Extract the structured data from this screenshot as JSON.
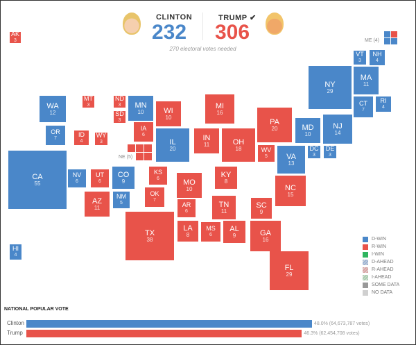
{
  "colors": {
    "dem": "#4a87c9",
    "rep": "#e8534a",
    "ind": "#2fb560",
    "some": "#999999",
    "none": "#d0d0d0"
  },
  "header": {
    "clinton": {
      "name": "CLINTON",
      "votes": "232",
      "avatar": "clinton-avatar-icon"
    },
    "trump": {
      "name": "TRUMP",
      "check": "✔",
      "votes": "306",
      "avatar": "trump-avatar-icon"
    },
    "needed": "270 electoral votes needed"
  },
  "states": [
    {
      "abbr": "AK",
      "ev": "3",
      "party": "rep"
    },
    {
      "abbr": "HI",
      "ev": "4",
      "party": "dem"
    },
    {
      "abbr": "WA",
      "ev": "12",
      "party": "dem"
    },
    {
      "abbr": "MT",
      "ev": "3",
      "party": "rep"
    },
    {
      "abbr": "ND",
      "ev": "3",
      "party": "rep"
    },
    {
      "abbr": "SD",
      "ev": "3",
      "party": "rep"
    },
    {
      "abbr": "MN",
      "ev": "10",
      "party": "dem"
    },
    {
      "abbr": "WI",
      "ev": "10",
      "party": "rep"
    },
    {
      "abbr": "MI",
      "ev": "16",
      "party": "rep"
    },
    {
      "abbr": "NY",
      "ev": "29",
      "party": "dem"
    },
    {
      "abbr": "VT",
      "ev": "3",
      "party": "dem"
    },
    {
      "abbr": "NH",
      "ev": "4",
      "party": "dem"
    },
    {
      "abbr": "MA",
      "ev": "11",
      "party": "dem"
    },
    {
      "abbr": "CT",
      "ev": "7",
      "party": "dem"
    },
    {
      "abbr": "RI",
      "ev": "4",
      "party": "dem"
    },
    {
      "abbr": "OR",
      "ev": "7",
      "party": "dem"
    },
    {
      "abbr": "ID",
      "ev": "4",
      "party": "rep"
    },
    {
      "abbr": "WY",
      "ev": "3",
      "party": "rep"
    },
    {
      "abbr": "IA",
      "ev": "6",
      "party": "rep"
    },
    {
      "abbr": "IL",
      "ev": "20",
      "party": "dem"
    },
    {
      "abbr": "IN",
      "ev": "11",
      "party": "rep"
    },
    {
      "abbr": "OH",
      "ev": "18",
      "party": "rep"
    },
    {
      "abbr": "PA",
      "ev": "20",
      "party": "rep"
    },
    {
      "abbr": "MD",
      "ev": "10",
      "party": "dem"
    },
    {
      "abbr": "NJ",
      "ev": "14",
      "party": "dem"
    },
    {
      "abbr": "CA",
      "ev": "55",
      "party": "dem"
    },
    {
      "abbr": "NV",
      "ev": "6",
      "party": "dem"
    },
    {
      "abbr": "UT",
      "ev": "6",
      "party": "rep"
    },
    {
      "abbr": "CO",
      "ev": "9",
      "party": "dem"
    },
    {
      "abbr": "KS",
      "ev": "6",
      "party": "rep"
    },
    {
      "abbr": "MO",
      "ev": "10",
      "party": "rep"
    },
    {
      "abbr": "KY",
      "ev": "8",
      "party": "rep"
    },
    {
      "abbr": "WV",
      "ev": "5",
      "party": "rep"
    },
    {
      "abbr": "VA",
      "ev": "13",
      "party": "dem"
    },
    {
      "abbr": "DC",
      "ev": "3",
      "party": "dem"
    },
    {
      "abbr": "DE",
      "ev": "3",
      "party": "dem"
    },
    {
      "abbr": "NC",
      "ev": "15",
      "party": "rep"
    },
    {
      "abbr": "AZ",
      "ev": "11",
      "party": "rep"
    },
    {
      "abbr": "NM",
      "ev": "5",
      "party": "dem"
    },
    {
      "abbr": "OK",
      "ev": "7",
      "party": "rep"
    },
    {
      "abbr": "AR",
      "ev": "6",
      "party": "rep"
    },
    {
      "abbr": "TN",
      "ev": "11",
      "party": "rep"
    },
    {
      "abbr": "SC",
      "ev": "9",
      "party": "rep"
    },
    {
      "abbr": "TX",
      "ev": "38",
      "party": "rep"
    },
    {
      "abbr": "LA",
      "ev": "8",
      "party": "rep"
    },
    {
      "abbr": "MS",
      "ev": "6",
      "party": "rep"
    },
    {
      "abbr": "AL",
      "ev": "9",
      "party": "rep"
    },
    {
      "abbr": "GA",
      "ev": "16",
      "party": "rep"
    },
    {
      "abbr": "FL",
      "ev": "29",
      "party": "rep"
    }
  ],
  "split_states": {
    "ME": {
      "label": "ME (4)",
      "districts": [
        "dem",
        "rep",
        "dem",
        "dem"
      ]
    },
    "NE": {
      "label": "NE (5)",
      "districts": [
        "rep",
        "rep",
        "rep",
        "rep",
        "rep"
      ]
    }
  },
  "legend": [
    {
      "label": "D-WIN",
      "color": "#4a87c9"
    },
    {
      "label": "R-WIN",
      "color": "#e8534a"
    },
    {
      "label": "I-WIN",
      "color": "#2fb560"
    },
    {
      "label": "D-AHEAD",
      "color": "#9bb4d6"
    },
    {
      "label": "R-AHEAD",
      "color": "#dba3a3"
    },
    {
      "label": "I-AHEAD",
      "color": "#a8cfae"
    },
    {
      "label": "SOME DATA",
      "color": "#999999"
    },
    {
      "label": "NO DATA",
      "color": "#d0d0d0"
    }
  ],
  "popular_vote": {
    "title": "NATIONAL POPULAR VOTE",
    "rows": [
      {
        "name": "Clinton",
        "percent": 48.0,
        "text": "48.0% (64,673,787 votes)",
        "color": "#4a87c9"
      },
      {
        "name": "Trump",
        "percent": 46.3,
        "text": "46.3% (62,454,708 votes)",
        "color": "#e8534a"
      }
    ]
  }
}
